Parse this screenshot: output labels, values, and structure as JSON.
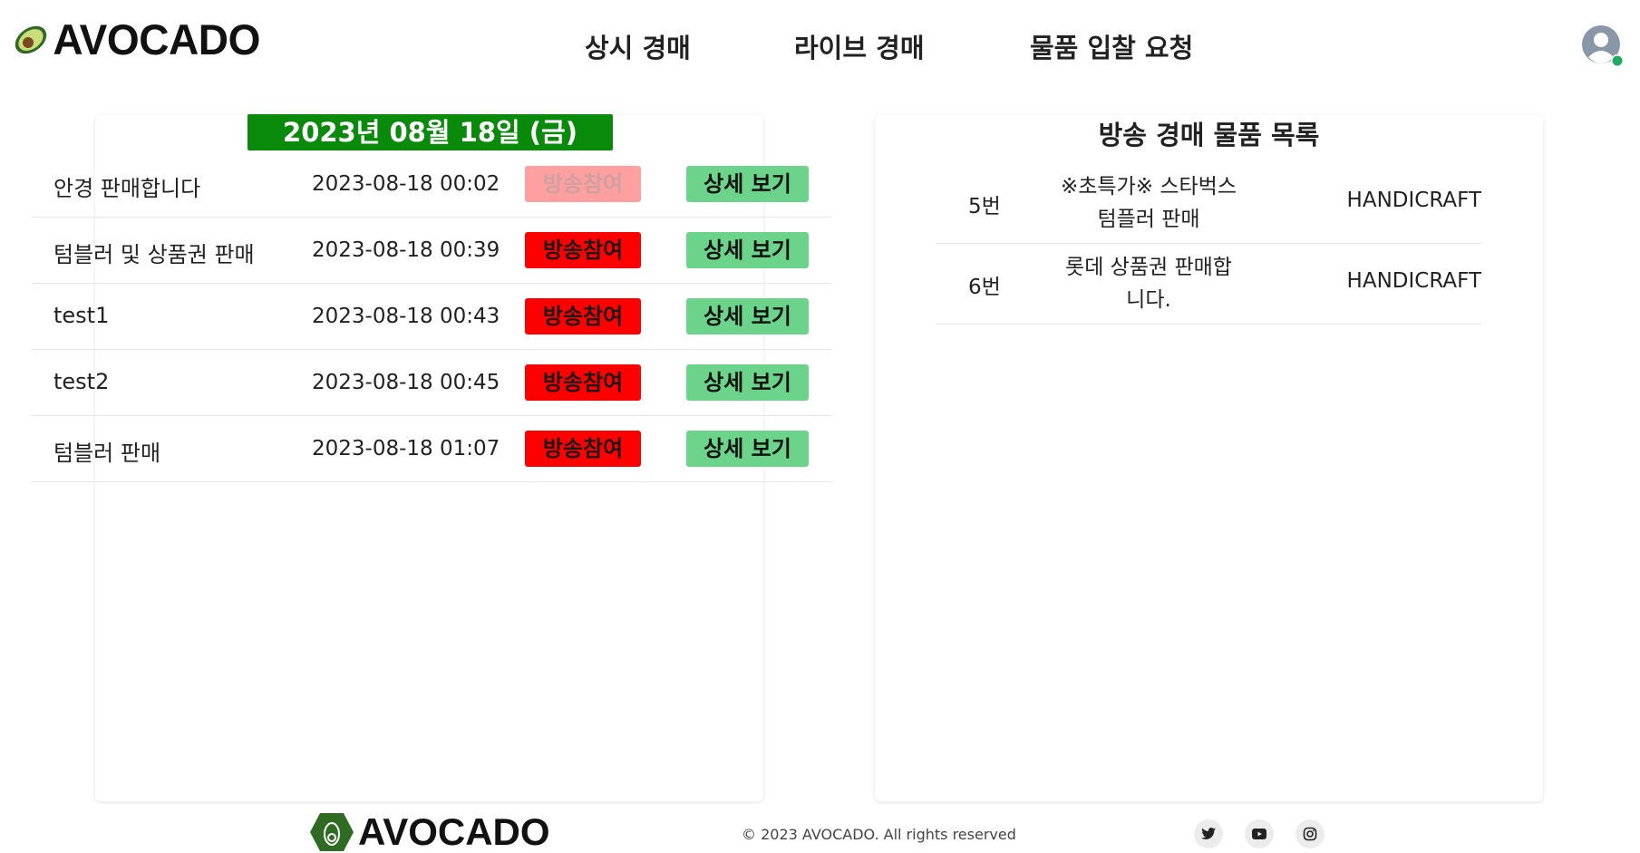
{
  "header": {
    "logo_text": "AVOCADO",
    "nav": [
      "상시 경매",
      "라이브 경매",
      "물품 입찰 요청"
    ]
  },
  "live_auctions": {
    "date": "2023년 08월 18일 (금)",
    "rows": [
      {
        "name": "안경 판매합니다",
        "time": "2023-08-18 00:02",
        "join_label": "방송참여",
        "join_enabled": false,
        "detail_label": "상세 보기"
      },
      {
        "name": "텀블러 및 상품권 판매",
        "time": "2023-08-18 00:39",
        "join_label": "방송참여",
        "join_enabled": true,
        "detail_label": "상세 보기"
      },
      {
        "name": "test1",
        "time": "2023-08-18 00:43",
        "join_label": "방송참여",
        "join_enabled": true,
        "detail_label": "상세 보기"
      },
      {
        "name": "test2",
        "time": "2023-08-18 00:45",
        "join_label": "방송참여",
        "join_enabled": true,
        "detail_label": "상세 보기"
      },
      {
        "name": "텀블러 판매",
        "time": "2023-08-18 01:07",
        "join_label": "방송참여",
        "join_enabled": true,
        "detail_label": "상세 보기"
      }
    ]
  },
  "broadcast_items": {
    "title": "방송 경매 물품 목록",
    "rows": [
      {
        "number": "5번",
        "title_lines": [
          "※초특가※ 스타벅스",
          "텀플러 판매"
        ],
        "category": "HANDICRAFT"
      },
      {
        "number": "6번",
        "title_lines": [
          "롯데 상품권 판매합",
          "니다."
        ],
        "category": "HANDICRAFT"
      }
    ]
  },
  "footer": {
    "logo_text": "AVOCADO",
    "copyright": "© 2023 AVOCADO. All rights reserved",
    "social_icons": [
      "twitter-icon",
      "youtube-icon",
      "instagram-icon"
    ]
  },
  "colors": {
    "date_badge": "#0a8a0a",
    "join_button": "#ff0000",
    "join_button_disabled": "#ff9f9f",
    "detail_button": "#6cd48a",
    "online_status": "#22a861"
  }
}
